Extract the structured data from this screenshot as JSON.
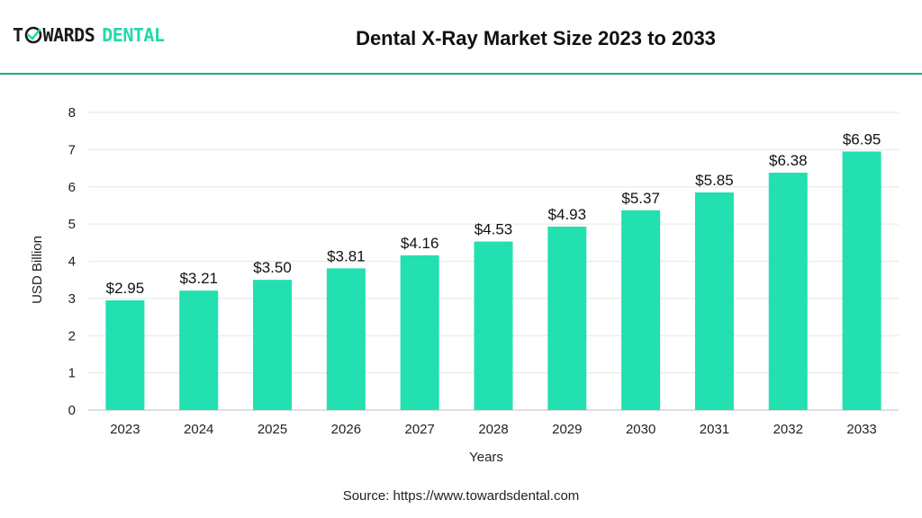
{
  "brand": {
    "word1": "T",
    "word1_rest": "WARDS",
    "word2": "DENTAL"
  },
  "title": "Dental X-Ray Market Size 2023 to 2033",
  "source": "Source: https://www.towardsdental.com",
  "colors": {
    "bar": "#22e0b0",
    "accent": "#21a985",
    "grid": "#e6e6e6"
  },
  "chart_data": {
    "type": "bar",
    "title": "Dental X-Ray Market Size 2023 to 2033",
    "xlabel": "Years",
    "ylabel": "USD Billion",
    "ylim": [
      0,
      8
    ],
    "yticks": [
      0,
      1,
      2,
      3,
      4,
      5,
      6,
      7,
      8
    ],
    "grid": true,
    "categories": [
      "2023",
      "2024",
      "2025",
      "2026",
      "2027",
      "2028",
      "2029",
      "2030",
      "2031",
      "2032",
      "2033"
    ],
    "values": [
      2.95,
      3.21,
      3.5,
      3.81,
      4.16,
      4.53,
      4.93,
      5.37,
      5.85,
      6.38,
      6.95
    ],
    "labels": [
      "$2.95",
      "$3.21",
      "$3.50",
      "$3.81",
      "$4.16",
      "$4.53",
      "$4.93",
      "$5.37",
      "$5.85",
      "$6.38",
      "$6.95"
    ]
  }
}
